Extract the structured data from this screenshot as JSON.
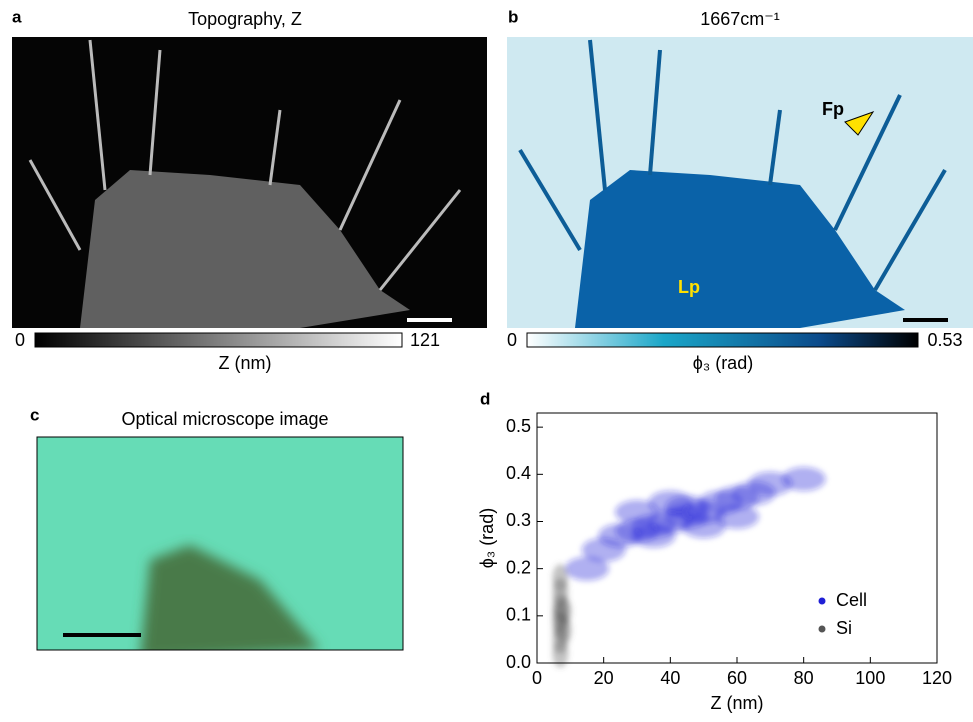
{
  "panels": [
    {
      "label": "a",
      "title": "Topography, Z",
      "colorbar": {
        "label": "Z (nm)",
        "min": 0,
        "max": 121
      }
    },
    {
      "label": "b",
      "title": "1667cm⁻¹",
      "annotations": [
        "Fp",
        "Lp"
      ],
      "colorbar": {
        "label": "ϕ₃ (rad)",
        "min": 0,
        "max": 0.53
      }
    },
    {
      "label": "c",
      "title": "Optical microscope image"
    }
  ],
  "chart_data": {
    "type": "scatter",
    "label": "d",
    "x_label": "Z (nm)",
    "y_label": "ϕ₃ (rad)",
    "xlim": [
      0,
      120
    ],
    "xticks": [
      0,
      20,
      40,
      60,
      80,
      100,
      120
    ],
    "ylim": [
      0,
      0.53
    ],
    "yticks": [
      {
        "value": 0,
        "label": "0.0"
      },
      0.1,
      0.2,
      0.3,
      0.4,
      0.5
    ],
    "legend": "lower right",
    "series": [
      {
        "name": "Cell",
        "color": "#1f1fd6",
        "x": [
          15,
          20,
          25,
          30,
          35,
          40,
          45,
          50,
          55,
          60,
          65,
          30,
          40,
          50,
          60,
          70,
          80,
          35,
          45
        ],
        "y": [
          0.2,
          0.24,
          0.27,
          0.28,
          0.29,
          0.3,
          0.31,
          0.32,
          0.34,
          0.35,
          0.36,
          0.32,
          0.34,
          0.29,
          0.31,
          0.38,
          0.39,
          0.27,
          0.33
        ]
      },
      {
        "name": "Si",
        "color": "#555555",
        "x": [
          7,
          7,
          7,
          7,
          7,
          7,
          7,
          8,
          8
        ],
        "y": [
          0.02,
          0.05,
          0.08,
          0.1,
          0.12,
          0.15,
          0.18,
          0.07,
          0.11
        ]
      }
    ]
  }
}
